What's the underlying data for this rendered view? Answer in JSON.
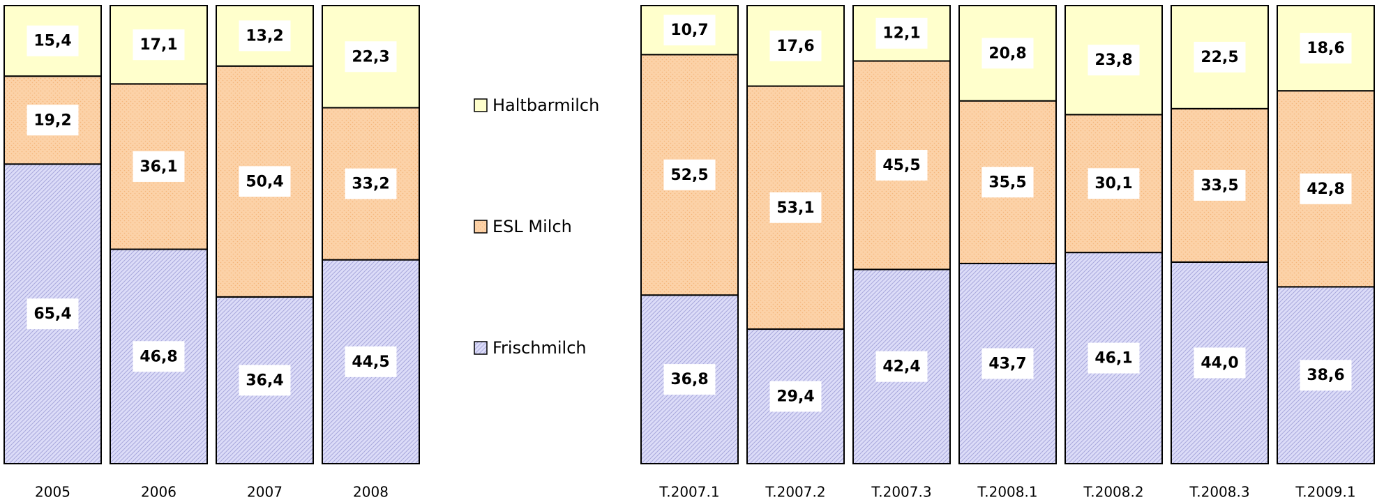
{
  "chart_data": [
    {
      "type": "stacked_bar",
      "categories": [
        "2005",
        "2006",
        "2007",
        "2008"
      ],
      "series": [
        {
          "name": "Frischmilch",
          "color": "#dcdcf8",
          "pattern": "hatch",
          "values": [
            65.4,
            46.8,
            36.4,
            44.5
          ],
          "value_labels": [
            "65,4",
            "46,8",
            "36,4",
            "44,5"
          ]
        },
        {
          "name": "ESL Milch",
          "color": "#fcd2a8",
          "pattern": "dots",
          "values": [
            19.2,
            36.1,
            50.4,
            33.2
          ],
          "value_labels": [
            "19,2",
            "36,1",
            "50,4",
            "33,2"
          ]
        },
        {
          "name": "Haltbarmilch",
          "color": "#ffffcc",
          "pattern": "none",
          "values": [
            15.4,
            17.1,
            13.2,
            22.3
          ],
          "value_labels": [
            "15,4",
            "17,1",
            "13,2",
            "22,3"
          ]
        }
      ]
    },
    {
      "type": "stacked_bar",
      "categories": [
        "T.2007.1",
        "T.2007.2",
        "T.2007.3",
        "T.2008.1",
        "T.2008.2",
        "T.2008.3",
        "T.2009.1"
      ],
      "series": [
        {
          "color": "#dcdcf8",
          "pattern": "hatch",
          "values": [
            36.8,
            29.4,
            42.4,
            43.7,
            46.1,
            44.0,
            38.6
          ],
          "value_labels": [
            "36,8",
            "29,4",
            "42,4",
            "43,7",
            "46,1",
            "44,0",
            "38,6"
          ]
        },
        {
          "color": "#fcd2a8",
          "pattern": "dots",
          "values": [
            52.5,
            53.1,
            45.5,
            35.5,
            30.1,
            33.5,
            42.8
          ],
          "value_labels": [
            "52,5",
            "53,1",
            "45,5",
            "35,5",
            "30,1",
            "33,5",
            "42,8"
          ]
        },
        {
          "color": "#ffffcc",
          "pattern": "none",
          "values": [
            10.7,
            17.6,
            12.1,
            20.8,
            23.8,
            22.5,
            18.6
          ],
          "value_labels": [
            "10,7",
            "17,6",
            "12,1",
            "20,8",
            "23,8",
            "22,5",
            "18,6"
          ]
        }
      ]
    }
  ]
}
